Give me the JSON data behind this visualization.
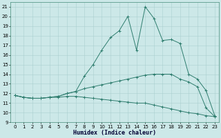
{
  "x": [
    0,
    1,
    2,
    3,
    4,
    5,
    6,
    7,
    8,
    9,
    10,
    11,
    12,
    13,
    14,
    15,
    16,
    17,
    18,
    19,
    20,
    21,
    22,
    23
  ],
  "line_main": [
    11.8,
    11.6,
    11.5,
    11.5,
    11.6,
    11.7,
    12.0,
    12.2,
    13.8,
    15.0,
    16.5,
    17.8,
    18.5,
    20.0,
    16.5,
    21.0,
    19.8,
    17.5,
    17.6,
    17.2,
    14.0,
    13.5,
    12.3,
    9.7
  ],
  "line_upper": [
    11.8,
    11.6,
    11.5,
    11.5,
    11.6,
    11.7,
    12.0,
    12.2,
    12.5,
    12.7,
    12.9,
    13.1,
    13.3,
    13.5,
    13.7,
    13.9,
    14.0,
    14.0,
    14.0,
    13.5,
    13.2,
    12.7,
    10.5,
    9.6
  ],
  "line_lower": [
    11.8,
    11.6,
    11.5,
    11.5,
    11.6,
    11.6,
    11.7,
    11.7,
    11.6,
    11.5,
    11.4,
    11.3,
    11.2,
    11.1,
    11.0,
    11.0,
    10.8,
    10.6,
    10.4,
    10.2,
    10.0,
    9.9,
    9.7,
    9.6
  ],
  "color": "#2e7d6e",
  "bg_color": "#cce8e8",
  "grid_color": "#aacfcf",
  "xlabel": "Humidex (Indice chaleur)",
  "ylim": [
    9,
    21.5
  ],
  "xlim": [
    -0.5,
    23.5
  ],
  "yticks": [
    9,
    10,
    11,
    12,
    13,
    14,
    15,
    16,
    17,
    18,
    19,
    20,
    21
  ],
  "xticks": [
    0,
    1,
    2,
    3,
    4,
    5,
    6,
    7,
    8,
    9,
    10,
    11,
    12,
    13,
    14,
    15,
    16,
    17,
    18,
    19,
    20,
    21,
    22,
    23
  ],
  "tick_fontsize": 5,
  "xlabel_fontsize": 6
}
